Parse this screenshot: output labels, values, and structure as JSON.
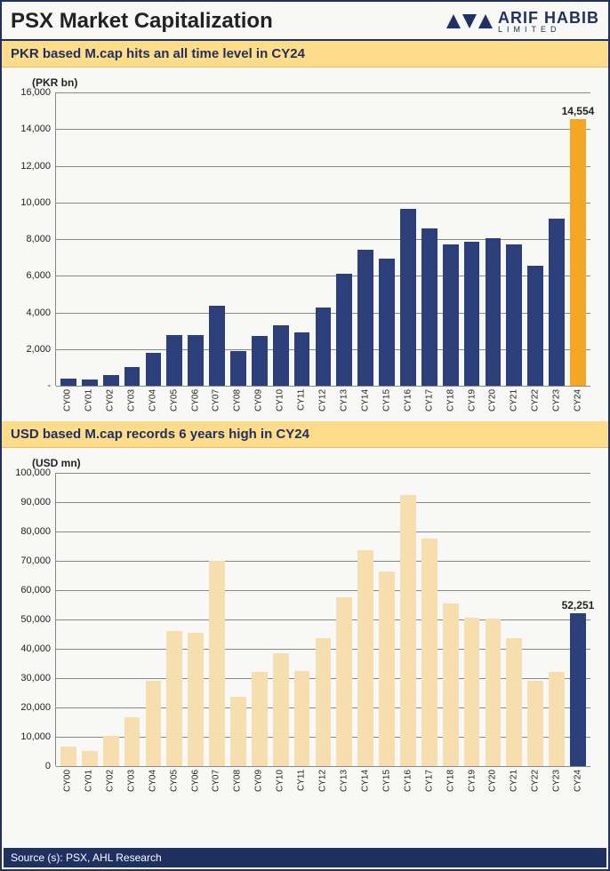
{
  "header": {
    "title": "PSX Market Capitalization",
    "logo_main": "ARIF HABIB",
    "logo_sub": "LIMITED"
  },
  "chart1": {
    "banner": "PKR based M.cap hits an all time level in CY24",
    "ylabel": "(PKR bn)",
    "type": "bar",
    "categories": [
      "CY00",
      "CY01",
      "CY02",
      "CY03",
      "CY04",
      "CY05",
      "CY06",
      "CY07",
      "CY08",
      "CY09",
      "CY10",
      "CY11",
      "CY12",
      "CY13",
      "CY14",
      "CY15",
      "CY16",
      "CY17",
      "CY18",
      "CY19",
      "CY20",
      "CY21",
      "CY22",
      "CY23",
      "CY24"
    ],
    "values": [
      400,
      350,
      600,
      1000,
      1800,
      2750,
      2750,
      4350,
      1900,
      2700,
      3300,
      2900,
      4250,
      6100,
      7400,
      6950,
      9650,
      8600,
      7700,
      7850,
      8050,
      7700,
      6550,
      9100,
      14554
    ],
    "bar_color": "#2c3f7a",
    "highlight_color": "#f5a623",
    "highlight_index": 24,
    "highlight_label": "14,554",
    "ylim": [
      0,
      16000
    ],
    "ytick_step": 2000,
    "yticks": [
      "-",
      "2,000",
      "4,000",
      "6,000",
      "8,000",
      "10,000",
      "12,000",
      "14,000",
      "16,000"
    ],
    "grid_color": "#888888",
    "background": "#f8f8f6"
  },
  "chart2": {
    "banner": "USD based M.cap records 6 years high in CY24",
    "ylabel": "(USD mn)",
    "type": "bar",
    "categories": [
      "CY00",
      "CY01",
      "CY02",
      "CY03",
      "CY04",
      "CY05",
      "CY06",
      "CY07",
      "CY08",
      "CY09",
      "CY10",
      "CY11",
      "CY12",
      "CY13",
      "CY14",
      "CY15",
      "CY16",
      "CY17",
      "CY18",
      "CY19",
      "CY20",
      "CY21",
      "CY22",
      "CY23",
      "CY24"
    ],
    "values": [
      6800,
      5100,
      10200,
      16800,
      29000,
      46000,
      45500,
      70000,
      23500,
      32000,
      38500,
      32500,
      43500,
      57500,
      73500,
      66500,
      92500,
      77500,
      55500,
      50500,
      50300,
      43500,
      29000,
      32000,
      52251
    ],
    "bar_color": "#f6deae",
    "highlight_color": "#2c3f7a",
    "highlight_index": 24,
    "highlight_label": "52,251",
    "ylim": [
      0,
      100000
    ],
    "ytick_step": 10000,
    "yticks": [
      "0",
      "10,000",
      "20,000",
      "30,000",
      "40,000",
      "50,000",
      "60,000",
      "70,000",
      "80,000",
      "90,000",
      "100,000"
    ],
    "grid_color": "#888888",
    "background": "#f8f8f6"
  },
  "source": "Source (s): PSX, AHL Research"
}
